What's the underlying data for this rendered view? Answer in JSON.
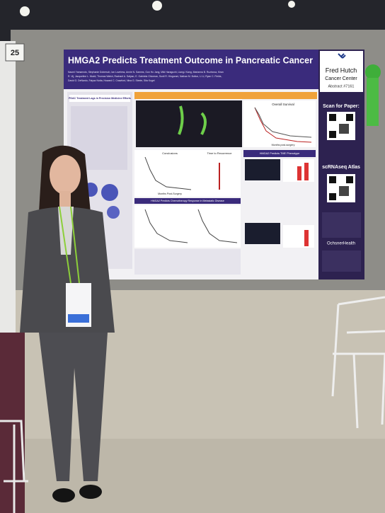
{
  "sign": {
    "number": "25"
  },
  "poster": {
    "title": "HMGA2 Predicts Treatment Outcome in Pancreatic Cancer",
    "authors": [
      "Naomi Yamamoto, Stephanie Dobersch, Ian Loveless, Annie N. Samms, Gun Ho Jang, Miki Haraguchi, Liang-I Kang, Marianna B. Ruzinova, Kiran",
      "R. Vij, Jacqueline L. Mudd, Thomas Walsh, Rachael A. Safyan, E. Gabriela Chiorean, Sunil R. Hingorani, Nathan M. Bolton, Li Li, Ryan C. Fields,",
      "David G. DeNardo, Faiyaz Notta, Howard C. Crawford, Nina G. Steele, Sita Kugel"
    ],
    "panels": {
      "intro": "PDAC Treatment Lags in Precision Medicine Efforts",
      "survival": "Overall Survival",
      "survival_axis": "Months post-surgery",
      "conclusions": "Conclusions",
      "recurrence": "Time to Recurrence",
      "months_axis": "Months Post-Surgery",
      "chemo": "HMGA2 Predicts Chemotherapy Response in Metastatic Disease",
      "tme": "HMGA2 Predicts TME Phenotype"
    },
    "institution": [
      "Fred Hutch",
      "Cancer Center"
    ],
    "abstract": "Abstract #7161",
    "qr_labels": [
      "Scan for Paper:",
      "scRNAseq Atlas"
    ],
    "sponsor": "OchsnerHealth"
  }
}
